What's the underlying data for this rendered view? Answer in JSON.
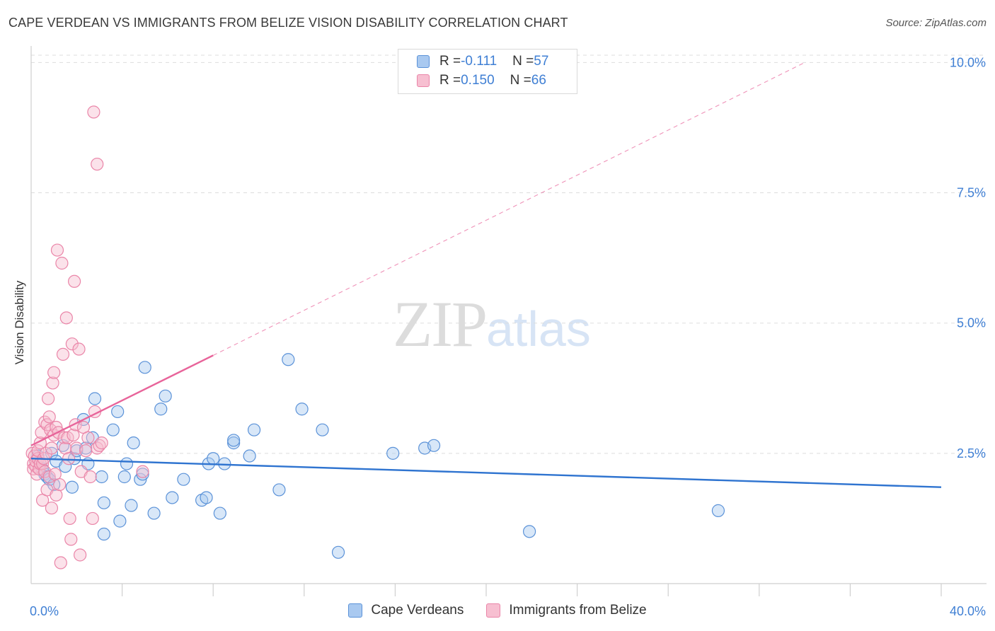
{
  "header": {
    "title": "CAPE VERDEAN VS IMMIGRANTS FROM BELIZE VISION DISABILITY CORRELATION CHART",
    "source": "Source: ZipAtlas.com"
  },
  "watermark": {
    "zip": "ZIP",
    "atlas": "atlas"
  },
  "legend_top": {
    "rows": [
      {
        "r_label": "R = ",
        "r_value": "-0.111",
        "n_label": "N = ",
        "n_value": "57"
      },
      {
        "r_label": "R = ",
        "r_value": "0.150",
        "n_label": "N = ",
        "n_value": "66"
      }
    ]
  },
  "legend_bottom": {
    "items": [
      {
        "label": "Cape Verdeans"
      },
      {
        "label": "Immigrants from Belize"
      }
    ]
  },
  "colors": {
    "blue_fill": "#a9c9f0",
    "blue_stroke": "#5b92d8",
    "blue_line": "#2f74d0",
    "pink_fill": "#f7bfd1",
    "pink_stroke": "#ea85a8",
    "pink_line": "#e8649a",
    "grid": "#dddddd",
    "tick_text": "#3f7fd4"
  },
  "chart_data": {
    "type": "scatter",
    "title": "CAPE VERDEAN VS IMMIGRANTS FROM BELIZE VISION DISABILITY CORRELATION CHART",
    "xlabel": "",
    "ylabel": "Vision Disability",
    "xlim": [
      0,
      40
    ],
    "ylim": [
      0,
      10.25
    ],
    "x_tick_labels": [
      {
        "value": 0,
        "label": "0.0%"
      },
      {
        "value": 40,
        "label": "40.0%"
      }
    ],
    "y_ticks": [
      {
        "value": 2.5,
        "label": "2.5%"
      },
      {
        "value": 5.0,
        "label": "5.0%"
      },
      {
        "value": 7.5,
        "label": "7.5%"
      },
      {
        "value": 10.0,
        "label": "10.0%"
      }
    ],
    "x_minor_ticks": [
      4,
      8,
      12,
      16,
      20,
      24,
      28,
      32,
      36,
      40
    ],
    "series": [
      {
        "name": "Cape Verdeans",
        "color": "blue",
        "r": -0.111,
        "n": 57,
        "trend": {
          "x0": 0,
          "y0": 2.4,
          "x1": 40,
          "y1": 1.85
        },
        "points": [
          [
            0.3,
            2.45
          ],
          [
            0.4,
            2.3
          ],
          [
            0.5,
            2.2
          ],
          [
            0.6,
            2.1
          ],
          [
            0.7,
            2.05
          ],
          [
            0.8,
            2.0
          ],
          [
            0.9,
            2.5
          ],
          [
            1.0,
            1.9
          ],
          [
            1.1,
            2.35
          ],
          [
            1.4,
            2.65
          ],
          [
            1.5,
            2.25
          ],
          [
            1.8,
            1.85
          ],
          [
            1.9,
            2.4
          ],
          [
            2.0,
            2.55
          ],
          [
            2.3,
            3.15
          ],
          [
            2.4,
            2.6
          ],
          [
            2.5,
            2.3
          ],
          [
            2.7,
            2.8
          ],
          [
            2.8,
            3.55
          ],
          [
            3.1,
            2.05
          ],
          [
            3.2,
            1.55
          ],
          [
            3.2,
            0.95
          ],
          [
            3.6,
            2.95
          ],
          [
            3.8,
            3.3
          ],
          [
            3.9,
            1.2
          ],
          [
            4.1,
            2.05
          ],
          [
            4.2,
            2.3
          ],
          [
            4.4,
            1.5
          ],
          [
            4.5,
            2.7
          ],
          [
            4.8,
            2.0
          ],
          [
            4.9,
            2.1
          ],
          [
            5.0,
            4.15
          ],
          [
            5.4,
            1.35
          ],
          [
            5.7,
            3.35
          ],
          [
            5.9,
            3.6
          ],
          [
            6.2,
            1.65
          ],
          [
            6.7,
            2.0
          ],
          [
            7.5,
            1.6
          ],
          [
            7.7,
            1.65
          ],
          [
            7.8,
            2.3
          ],
          [
            8.0,
            2.4
          ],
          [
            8.3,
            1.35
          ],
          [
            8.5,
            2.3
          ],
          [
            8.9,
            2.7
          ],
          [
            8.9,
            2.75
          ],
          [
            9.6,
            2.45
          ],
          [
            9.8,
            2.95
          ],
          [
            10.9,
            1.8
          ],
          [
            11.3,
            4.3
          ],
          [
            11.9,
            3.35
          ],
          [
            12.8,
            2.95
          ],
          [
            13.5,
            0.6
          ],
          [
            15.9,
            2.5
          ],
          [
            17.3,
            2.6
          ],
          [
            17.7,
            2.65
          ],
          [
            21.9,
            1.0
          ],
          [
            30.2,
            1.4
          ]
        ]
      },
      {
        "name": "Immigrants from Belize",
        "color": "pink",
        "r": 0.15,
        "n": 66,
        "trend": {
          "x0": 0,
          "y0": 2.65,
          "x1": 8.0,
          "y1": 4.38
        },
        "trend_extension": {
          "x0": 8.0,
          "y0": 4.38,
          "x1": 34,
          "y1": 10.0
        },
        "points": [
          [
            0.05,
            2.5
          ],
          [
            0.1,
            2.3
          ],
          [
            0.1,
            2.2
          ],
          [
            0.15,
            2.45
          ],
          [
            0.2,
            2.25
          ],
          [
            0.2,
            2.35
          ],
          [
            0.25,
            2.1
          ],
          [
            0.3,
            2.4
          ],
          [
            0.3,
            2.55
          ],
          [
            0.35,
            2.2
          ],
          [
            0.4,
            2.3
          ],
          [
            0.4,
            2.7
          ],
          [
            0.45,
            2.9
          ],
          [
            0.5,
            2.3
          ],
          [
            0.5,
            1.6
          ],
          [
            0.55,
            2.4
          ],
          [
            0.6,
            2.15
          ],
          [
            0.6,
            3.1
          ],
          [
            0.65,
            2.5
          ],
          [
            0.7,
            3.05
          ],
          [
            0.7,
            1.8
          ],
          [
            0.75,
            3.55
          ],
          [
            0.8,
            2.05
          ],
          [
            0.8,
            3.2
          ],
          [
            0.85,
            2.95
          ],
          [
            0.9,
            2.6
          ],
          [
            0.9,
            1.45
          ],
          [
            0.95,
            3.85
          ],
          [
            1.0,
            4.05
          ],
          [
            1.0,
            2.85
          ],
          [
            1.05,
            2.1
          ],
          [
            1.1,
            3.0
          ],
          [
            1.1,
            1.7
          ],
          [
            1.15,
            6.4
          ],
          [
            1.2,
            2.9
          ],
          [
            1.25,
            1.9
          ],
          [
            1.3,
            0.4
          ],
          [
            1.35,
            6.15
          ],
          [
            1.4,
            4.4
          ],
          [
            1.45,
            2.8
          ],
          [
            1.5,
            2.6
          ],
          [
            1.55,
            5.1
          ],
          [
            1.6,
            2.8
          ],
          [
            1.65,
            2.4
          ],
          [
            1.7,
            1.25
          ],
          [
            1.75,
            0.85
          ],
          [
            1.8,
            4.6
          ],
          [
            1.85,
            2.85
          ],
          [
            1.9,
            5.8
          ],
          [
            1.95,
            3.05
          ],
          [
            2.0,
            2.6
          ],
          [
            2.1,
            4.5
          ],
          [
            2.15,
            0.55
          ],
          [
            2.2,
            2.15
          ],
          [
            2.3,
            3.0
          ],
          [
            2.4,
            2.55
          ],
          [
            2.5,
            2.8
          ],
          [
            2.6,
            2.05
          ],
          [
            2.7,
            1.25
          ],
          [
            2.8,
            3.3
          ],
          [
            2.9,
            2.6
          ],
          [
            3.0,
            2.65
          ],
          [
            3.1,
            2.7
          ],
          [
            2.75,
            9.05
          ],
          [
            2.9,
            8.05
          ],
          [
            4.9,
            2.15
          ]
        ]
      }
    ]
  }
}
